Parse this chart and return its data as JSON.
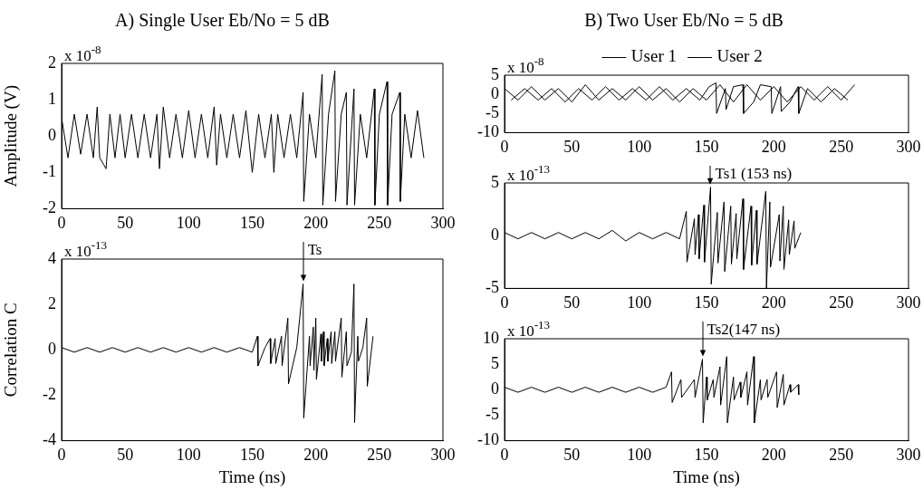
{
  "chart_data": [
    {
      "type": "line",
      "title": "A) Single User Eb/No = 5 dB",
      "ylabel": "Amplitude (V)",
      "annotations": [
        "x 10$^{-8}$"
      ],
      "xlim": [
        0,
        300
      ],
      "xticks": [
        0,
        50,
        100,
        150,
        200,
        250,
        300
      ],
      "ylim": [
        -2,
        2
      ],
      "yticks": [
        -2,
        -1,
        0,
        1,
        2
      ],
      "series": [
        {
          "color": "#000000",
          "x": [
            0,
            5,
            10,
            15,
            20,
            25,
            28,
            30,
            35,
            38,
            42,
            46,
            50,
            55,
            60,
            65,
            70,
            75,
            77,
            80,
            85,
            90,
            95,
            100,
            105,
            110,
            115,
            120,
            122,
            125,
            130,
            135,
            140,
            145,
            150,
            155,
            160,
            165,
            167,
            170,
            175,
            180,
            185,
            190,
            190.5,
            195,
            200,
            205,
            205.5,
            210,
            215,
            215.5,
            220,
            224,
            224.5,
            230,
            230.5,
            235,
            240,
            246,
            246.5,
            250,
            256,
            256.5,
            260,
            266,
            266.5,
            270,
            275,
            280,
            285
          ],
          "values": [
            0.5,
            -0.6,
            0.6,
            -0.5,
            0.6,
            -0.6,
            0.8,
            -0.6,
            -0.9,
            0.6,
            -0.6,
            0.6,
            -0.6,
            0.6,
            -0.6,
            0.6,
            -0.6,
            0.6,
            -0.9,
            0.8,
            -0.6,
            0.6,
            -0.6,
            0.7,
            -0.6,
            0.6,
            -0.6,
            0.8,
            -0.8,
            0.6,
            -0.6,
            0.6,
            -0.6,
            0.7,
            -1.0,
            0.6,
            -0.6,
            0.6,
            -1.0,
            0.6,
            -0.6,
            0.6,
            -0.6,
            1.2,
            -1.8,
            0.6,
            -0.6,
            1.7,
            -1.9,
            0.6,
            1.8,
            -1.8,
            0.6,
            1.2,
            -1.9,
            1.3,
            -1.9,
            0.6,
            -0.6,
            1.3,
            -1.9,
            0.6,
            1.5,
            -1.9,
            0.6,
            1.2,
            -1.8,
            0.6,
            -0.6,
            0.7,
            -0.6
          ]
        }
      ]
    },
    {
      "type": "line",
      "xlabel": "Time (ns)",
      "ylabel": "Correlation C",
      "annotations": [
        "x 10$^{-13}$",
        {
          "text": "Ts",
          "x": 190,
          "y": 2.9
        }
      ],
      "xlim": [
        0,
        300
      ],
      "xticks": [
        0,
        50,
        100,
        150,
        200,
        250,
        300
      ],
      "ylim": [
        -4,
        4
      ],
      "yticks": [
        -4,
        -2,
        0,
        2,
        4
      ],
      "series": [
        {
          "color": "#000000",
          "x": [
            0,
            10,
            20,
            30,
            40,
            50,
            60,
            70,
            80,
            90,
            100,
            110,
            120,
            130,
            140,
            150,
            154,
            154.5,
            160,
            164,
            164.5,
            168,
            168.5,
            173,
            173.5,
            178,
            178.5,
            185,
            190,
            190.5,
            195,
            195.5,
            198,
            198.5,
            200,
            200.5,
            204,
            204.5,
            206,
            206.5,
            209,
            209.5,
            212,
            212.5,
            215,
            215.5,
            220,
            220.5,
            224,
            224.5,
            228,
            230,
            230.5,
            233,
            233.5,
            237,
            240,
            240.5,
            245
          ],
          "values": [
            0.1,
            -0.1,
            0.1,
            -0.1,
            0.1,
            -0.1,
            0.1,
            -0.1,
            0.1,
            -0.1,
            0.1,
            -0.1,
            0.1,
            -0.1,
            0.1,
            -0.1,
            0.6,
            -0.7,
            0.1,
            0.5,
            -0.6,
            0.5,
            -0.6,
            0.6,
            -0.7,
            1.4,
            -1.5,
            0.1,
            2.9,
            -3.0,
            0.6,
            -0.7,
            1.0,
            -0.9,
            1.4,
            -1.3,
            0.7,
            -0.5,
            0.8,
            -0.7,
            0.5,
            -0.5,
            0.8,
            -0.6,
            0.8,
            -0.5,
            1.4,
            -1.2,
            0.8,
            -0.7,
            -0.1,
            2.9,
            -3.2,
            0.6,
            -0.5,
            0.1,
            1.4,
            -1.6,
            0.6
          ]
        }
      ]
    },
    {
      "type": "line",
      "title": "B) Two User Eb/No = 5 dB",
      "legend": "top",
      "annotations": [
        "x 10$^{-8}$"
      ],
      "xlim": [
        0,
        300
      ],
      "xticks": [
        0,
        50,
        100,
        150,
        200,
        250,
        300
      ],
      "ylim": [
        -10,
        5
      ],
      "yticks": [
        -10,
        -5,
        0,
        5
      ],
      "series": [
        {
          "name": "User 1",
          "color": "#000000",
          "x": [
            0,
            10,
            20,
            30,
            40,
            50,
            60,
            70,
            80,
            90,
            100,
            110,
            120,
            130,
            140,
            150,
            160,
            170,
            180,
            190,
            200,
            210,
            220,
            230,
            240,
            250,
            260
          ],
          "values": [
            1.5,
            -1.5,
            2,
            -1.5,
            1.5,
            -2,
            2.5,
            -1.5,
            1.5,
            -1.5,
            2,
            -1.5,
            1.5,
            -2,
            1.5,
            -1.5,
            2.5,
            -2,
            2.5,
            -1.5,
            2,
            -2,
            2,
            -1.5,
            2,
            -1.5,
            2.5
          ]
        },
        {
          "name": "User 2",
          "color": "#000000",
          "x": [
            5,
            15,
            25,
            35,
            45,
            55,
            65,
            75,
            85,
            95,
            105,
            115,
            125,
            135,
            145,
            152,
            157,
            157.5,
            164,
            164.5,
            170,
            177,
            177.5,
            185,
            190,
            198,
            198.5,
            205,
            205.5,
            212,
            218,
            218.5,
            225,
            235,
            245,
            255
          ],
          "values": [
            -1.5,
            1.5,
            -1.5,
            1.5,
            -2,
            1.5,
            -1.5,
            2,
            -1.5,
            1.5,
            -1.5,
            2,
            -1.5,
            1.5,
            -1.5,
            2,
            3,
            -5,
            1.5,
            -4,
            2,
            2.5,
            -5,
            -2,
            2.5,
            2,
            -5,
            2,
            -4.5,
            -2,
            2,
            -5,
            1.5,
            -2,
            1.5,
            -1.5
          ]
        }
      ]
    },
    {
      "type": "line",
      "annotations": [
        "x 10$^{-13}$",
        {
          "text": "Ts1 (153 ns)",
          "x": 153,
          "y": 4.6
        }
      ],
      "xlim": [
        0,
        300
      ],
      "xticks": [
        0,
        50,
        100,
        150,
        200,
        250,
        300
      ],
      "ylim": [
        -5,
        5
      ],
      "yticks": [
        -5,
        0,
        5
      ],
      "series": [
        {
          "color": "#000000",
          "x": [
            0,
            10,
            20,
            30,
            40,
            50,
            60,
            70,
            80,
            90,
            100,
            110,
            120,
            130,
            135,
            135.5,
            141,
            141.5,
            144,
            144.5,
            148,
            148.5,
            153,
            153.5,
            158,
            158.5,
            163,
            163.5,
            168,
            168.5,
            172,
            172.5,
            177,
            177.5,
            183,
            183.5,
            187,
            187.5,
            194,
            194.5,
            197,
            197.5,
            204,
            204.5,
            207,
            207.5,
            211,
            211.5,
            215,
            215.5,
            220
          ],
          "values": [
            0.3,
            -0.3,
            0.3,
            -0.3,
            0.3,
            -0.3,
            0.3,
            -0.3,
            0.5,
            -0.5,
            0.3,
            -0.3,
            0.3,
            -0.3,
            2.3,
            -2.5,
            1.6,
            -1.8,
            2.0,
            -2.2,
            2.9,
            -2.5,
            4.6,
            -4.6,
            2.2,
            -2.6,
            3.2,
            -3.4,
            2.8,
            -2.7,
            2.1,
            -2.2,
            3.5,
            -3.2,
            2.8,
            -2.8,
            2.4,
            -2.7,
            4.2,
            -5,
            3.2,
            -3.0,
            2.0,
            -2.4,
            2.8,
            -3.2,
            1.5,
            -1.8,
            1.4,
            -1.2,
            0.3
          ]
        }
      ]
    },
    {
      "type": "line",
      "xlabel": "Time (ns)",
      "annotations": [
        "x 10$^{-13}$",
        {
          "text": "Ts2(147 ns)",
          "x": 147,
          "y": 6
        }
      ],
      "xlim": [
        0,
        300
      ],
      "xticks": [
        0,
        50,
        100,
        150,
        200,
        250,
        300
      ],
      "ylim": [
        -10,
        10
      ],
      "yticks": [
        -10,
        -5,
        0,
        5,
        10
      ],
      "series": [
        {
          "color": "#000000",
          "x": [
            0,
            10,
            20,
            30,
            40,
            50,
            60,
            70,
            80,
            90,
            100,
            110,
            120,
            124,
            124.5,
            131,
            131.5,
            141,
            141.5,
            147,
            147.5,
            150,
            150.5,
            155,
            155.5,
            160,
            160.5,
            165,
            165.5,
            170,
            170.5,
            175,
            175.5,
            180,
            180.5,
            185,
            185.5,
            190,
            190.5,
            195,
            195.5,
            202,
            202.5,
            207,
            207.5,
            212,
            212.5,
            218,
            218.5
          ],
          "values": [
            0.5,
            -0.5,
            0.5,
            -0.5,
            0.5,
            -0.5,
            0.5,
            -0.5,
            0.5,
            -0.5,
            0.5,
            -0.5,
            0.5,
            3.5,
            -2.5,
            2,
            -1.5,
            2,
            -1.5,
            6,
            -6.5,
            2.5,
            -2,
            2,
            -1.5,
            4.5,
            -3,
            6.5,
            -6.5,
            2.5,
            -2,
            1.5,
            -1.5,
            3.5,
            -3,
            6.5,
            -6.5,
            2,
            -2,
            2,
            -1.5,
            3.5,
            -3.5,
            3,
            -3,
            1,
            -0.5,
            1,
            -1
          ]
        }
      ]
    }
  ]
}
